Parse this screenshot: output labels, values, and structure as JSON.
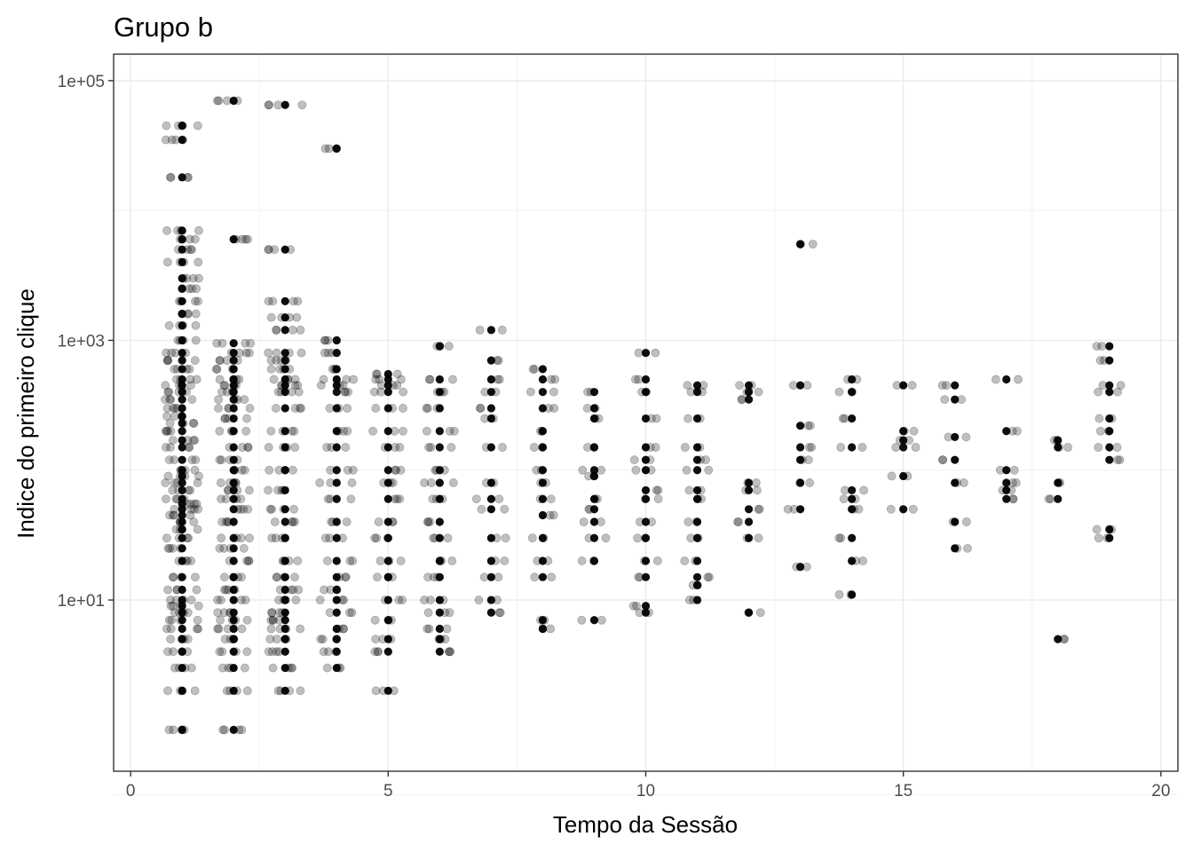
{
  "chart_data": {
    "type": "scatter",
    "title": "Grupo b",
    "xlabel": "Tempo da Sessão",
    "ylabel": "Indice do primeiro clique",
    "x_range": [
      -0.33,
      20.33
    ],
    "y_scale": "log10",
    "y_range": [
      0.48,
      160000
    ],
    "x_ticks": [
      0,
      5,
      10,
      15,
      20
    ],
    "x_tick_labels": [
      "0",
      "5",
      "10",
      "15",
      "20"
    ],
    "y_ticks": [
      10,
      1000,
      100000
    ],
    "y_tick_labels": [
      "1e+01",
      "1e+03",
      "1e+05"
    ],
    "grid": true,
    "legend": "none",
    "point_style": {
      "fill": "#000000",
      "opacity": 0.25,
      "jitter": "horizontal"
    },
    "columns": [
      {
        "x": 1,
        "y": [
          1,
          2,
          3,
          4,
          5,
          6,
          7,
          8,
          9,
          10,
          12,
          15,
          20,
          25,
          30,
          35,
          40,
          45,
          50,
          55,
          60,
          70,
          80,
          90,
          100,
          120,
          150,
          170,
          200,
          230,
          260,
          300,
          350,
          400,
          450,
          500,
          600,
          700,
          800,
          1000,
          1300,
          1600,
          2000,
          2500,
          3000,
          4000,
          5000,
          6000,
          7000,
          18000,
          35000,
          45000
        ]
      },
      {
        "x": 2,
        "y": [
          1,
          2,
          3,
          4,
          5,
          6,
          7,
          8,
          10,
          12,
          15,
          20,
          25,
          30,
          40,
          50,
          60,
          70,
          80,
          100,
          120,
          150,
          200,
          250,
          300,
          350,
          400,
          450,
          500,
          600,
          700,
          800,
          950,
          6000,
          70000
        ]
      },
      {
        "x": 3,
        "y": [
          2,
          3,
          4,
          5,
          6,
          7,
          8,
          10,
          12,
          15,
          20,
          30,
          40,
          50,
          70,
          100,
          150,
          200,
          300,
          400,
          450,
          500,
          600,
          700,
          800,
          1200,
          1500,
          2000,
          5000,
          65000
        ]
      },
      {
        "x": 4,
        "y": [
          3,
          4,
          5,
          6,
          8,
          10,
          12,
          15,
          20,
          30,
          40,
          60,
          80,
          100,
          150,
          200,
          300,
          400,
          450,
          500,
          600,
          800,
          1000,
          30000
        ]
      },
      {
        "x": 5,
        "y": [
          2,
          4,
          5,
          7,
          10,
          15,
          20,
          30,
          40,
          60,
          80,
          100,
          150,
          200,
          300,
          400,
          450,
          500,
          550
        ]
      },
      {
        "x": 6,
        "y": [
          4,
          5,
          6,
          8,
          10,
          15,
          20,
          30,
          40,
          60,
          80,
          100,
          150,
          200,
          300,
          400,
          500,
          900
        ]
      },
      {
        "x": 7,
        "y": [
          8,
          10,
          15,
          20,
          30,
          50,
          60,
          80,
          150,
          250,
          300,
          400,
          500,
          700,
          1200
        ]
      },
      {
        "x": 8,
        "y": [
          6,
          7,
          15,
          20,
          30,
          45,
          60,
          80,
          100,
          150,
          200,
          300,
          400,
          500,
          600
        ]
      },
      {
        "x": 9,
        "y": [
          7,
          20,
          30,
          40,
          50,
          60,
          90,
          100,
          150,
          250,
          300,
          400
        ]
      },
      {
        "x": 10,
        "y": [
          8,
          9,
          15,
          20,
          30,
          40,
          60,
          70,
          100,
          120,
          150,
          250,
          400,
          500,
          800
        ]
      },
      {
        "x": 11,
        "y": [
          10,
          13,
          15,
          20,
          30,
          40,
          60,
          70,
          100,
          120,
          150,
          250,
          400,
          450
        ]
      },
      {
        "x": 12,
        "y": [
          8,
          30,
          40,
          50,
          70,
          80,
          350,
          400,
          450
        ]
      },
      {
        "x": 13,
        "y": [
          18,
          50,
          80,
          120,
          150,
          220,
          450,
          5500
        ]
      },
      {
        "x": 14,
        "y": [
          11,
          20,
          30,
          50,
          60,
          70,
          150,
          250,
          400,
          500
        ]
      },
      {
        "x": 15,
        "y": [
          50,
          90,
          150,
          170,
          200,
          450
        ]
      },
      {
        "x": 16,
        "y": [
          25,
          40,
          80,
          120,
          180,
          350,
          450
        ]
      },
      {
        "x": 17,
        "y": [
          60,
          70,
          80,
          100,
          200,
          500
        ]
      },
      {
        "x": 18,
        "y": [
          5,
          60,
          80,
          150,
          170
        ]
      },
      {
        "x": 19,
        "y": [
          30,
          35,
          120,
          150,
          200,
          250,
          400,
          450,
          700,
          900
        ]
      }
    ]
  }
}
